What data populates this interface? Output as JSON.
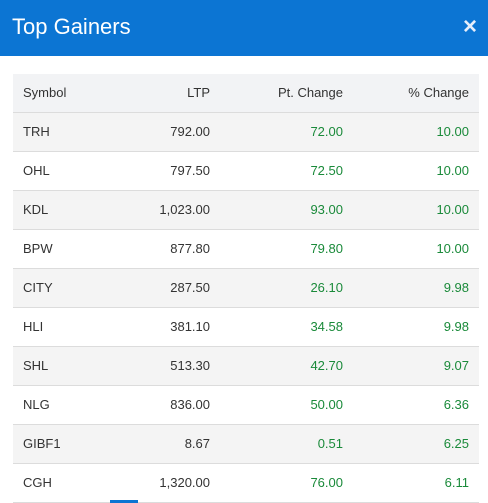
{
  "modal": {
    "title": "Top Gainers",
    "close_label": "×"
  },
  "table": {
    "headers": [
      "Symbol",
      "LTP",
      "Pt. Change",
      "% Change"
    ],
    "rows": [
      [
        "TRH",
        "792.00",
        "72.00",
        "10.00"
      ],
      [
        "OHL",
        "797.50",
        "72.50",
        "10.00"
      ],
      [
        "KDL",
        "1,023.00",
        "93.00",
        "10.00"
      ],
      [
        "BPW",
        "877.80",
        "79.80",
        "10.00"
      ],
      [
        "CITY",
        "287.50",
        "26.10",
        "9.98"
      ],
      [
        "HLI",
        "381.10",
        "34.58",
        "9.98"
      ],
      [
        "SHL",
        "513.30",
        "42.70",
        "9.07"
      ],
      [
        "NLG",
        "836.00",
        "50.00",
        "6.36"
      ],
      [
        "GIBF1",
        "8.67",
        "0.51",
        "6.25"
      ],
      [
        "CGH",
        "1,320.00",
        "76.00",
        "6.11"
      ]
    ]
  },
  "colors": {
    "header_bg": "#0c75d3",
    "positive": "#1a8a3a",
    "row_alt": "#f4f4f4",
    "thead_bg": "#f2f3f5"
  }
}
